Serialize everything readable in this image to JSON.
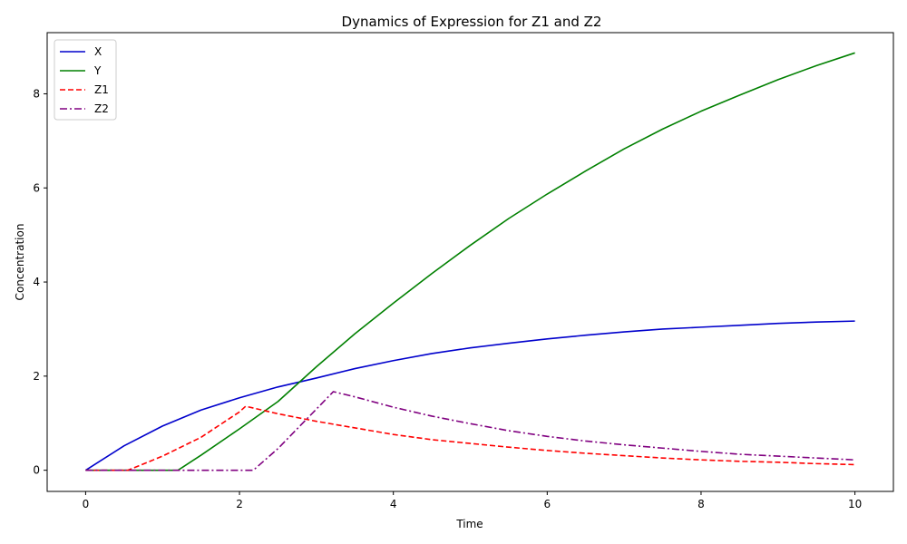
{
  "chart_data": {
    "type": "line",
    "title": "Dynamics of Expression for Z1 and Z2",
    "xlabel": "Time",
    "ylabel": "Concentration",
    "xlim": [
      -0.5,
      10.5
    ],
    "ylim": [
      -0.45,
      9.3
    ],
    "xticks": [
      0,
      2,
      4,
      6,
      8,
      10
    ],
    "yticks": [
      0,
      2,
      4,
      6,
      8
    ],
    "grid": false,
    "legend_position": "upper-left",
    "x": [
      0,
      0.5,
      1,
      1.5,
      2,
      2.5,
      3,
      3.5,
      4,
      4.5,
      5,
      5.5,
      6,
      6.5,
      7,
      7.5,
      8,
      8.5,
      9,
      9.5,
      10
    ],
    "series": [
      {
        "name": "X",
        "color": "#0000cc",
        "dash": "solid",
        "points": [
          [
            0,
            0
          ],
          [
            0.5,
            0.52
          ],
          [
            1,
            0.94
          ],
          [
            1.5,
            1.28
          ],
          [
            2,
            1.54
          ],
          [
            2.5,
            1.77
          ],
          [
            3,
            1.96
          ],
          [
            3.5,
            2.16
          ],
          [
            4,
            2.33
          ],
          [
            4.5,
            2.48
          ],
          [
            5,
            2.6
          ],
          [
            5.5,
            2.7
          ],
          [
            6,
            2.79
          ],
          [
            6.5,
            2.87
          ],
          [
            7,
            2.94
          ],
          [
            7.5,
            3.0
          ],
          [
            8,
            3.04
          ],
          [
            8.5,
            3.08
          ],
          [
            9,
            3.12
          ],
          [
            9.5,
            3.15
          ],
          [
            10,
            3.17
          ]
        ]
      },
      {
        "name": "Y",
        "color": "#008000",
        "dash": "solid",
        "points": [
          [
            0,
            0
          ],
          [
            0.5,
            0
          ],
          [
            1,
            0
          ],
          [
            1.2,
            0
          ],
          [
            1.5,
            0.32
          ],
          [
            2,
            0.88
          ],
          [
            2.5,
            1.46
          ],
          [
            3,
            2.2
          ],
          [
            3.5,
            2.9
          ],
          [
            4,
            3.55
          ],
          [
            4.5,
            4.18
          ],
          [
            5,
            4.78
          ],
          [
            5.5,
            5.35
          ],
          [
            6,
            5.87
          ],
          [
            6.5,
            6.36
          ],
          [
            7,
            6.83
          ],
          [
            7.5,
            7.25
          ],
          [
            8,
            7.63
          ],
          [
            8.5,
            7.97
          ],
          [
            9,
            8.3
          ],
          [
            9.5,
            8.6
          ],
          [
            10,
            8.87
          ]
        ]
      },
      {
        "name": "Z1",
        "color": "#ff0000",
        "dash": "dashed",
        "points": [
          [
            0,
            0
          ],
          [
            0.55,
            0
          ],
          [
            1,
            0.3
          ],
          [
            1.5,
            0.7
          ],
          [
            2,
            1.24
          ],
          [
            2.08,
            1.36
          ],
          [
            2.5,
            1.2
          ],
          [
            3,
            1.04
          ],
          [
            3.5,
            0.9
          ],
          [
            4,
            0.76
          ],
          [
            4.5,
            0.65
          ],
          [
            5,
            0.57
          ],
          [
            5.5,
            0.49
          ],
          [
            6,
            0.42
          ],
          [
            6.5,
            0.36
          ],
          [
            7,
            0.31
          ],
          [
            7.5,
            0.26
          ],
          [
            8,
            0.22
          ],
          [
            8.5,
            0.19
          ],
          [
            9,
            0.17
          ],
          [
            9.5,
            0.14
          ],
          [
            10,
            0.12
          ]
        ]
      },
      {
        "name": "Z2",
        "color": "#800080",
        "dash": "dashdot",
        "points": [
          [
            0,
            0
          ],
          [
            1,
            0
          ],
          [
            2,
            0
          ],
          [
            2.18,
            0
          ],
          [
            2.5,
            0.46
          ],
          [
            3,
            1.3
          ],
          [
            3.22,
            1.67
          ],
          [
            3.5,
            1.56
          ],
          [
            4,
            1.34
          ],
          [
            4.5,
            1.15
          ],
          [
            5,
            0.99
          ],
          [
            5.5,
            0.84
          ],
          [
            6,
            0.72
          ],
          [
            6.5,
            0.62
          ],
          [
            7,
            0.54
          ],
          [
            7.5,
            0.47
          ],
          [
            8,
            0.4
          ],
          [
            8.5,
            0.34
          ],
          [
            9,
            0.3
          ],
          [
            9.5,
            0.26
          ],
          [
            10,
            0.22
          ]
        ]
      }
    ]
  }
}
